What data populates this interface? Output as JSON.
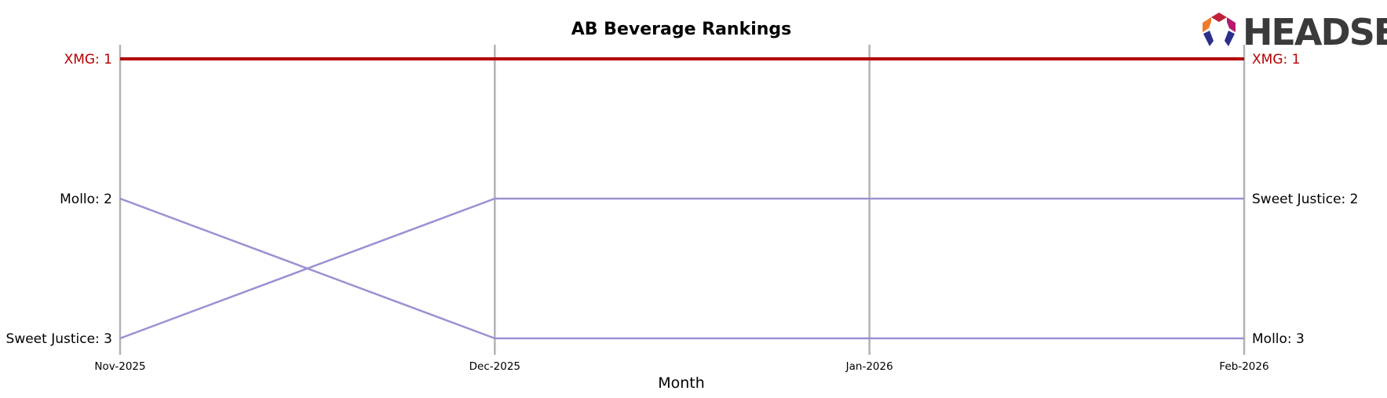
{
  "logo": {
    "text": "HEADSET"
  },
  "chart_data": {
    "type": "line",
    "title": "AB Beverage Rankings",
    "xlabel": "Month",
    "ylabel": "",
    "categories": [
      "Nov-2025",
      "Dec-2025",
      "Jan-2026",
      "Feb-2026"
    ],
    "y_inverted": true,
    "ylim": [
      1,
      3
    ],
    "grid": "vertical lines at each month",
    "series": [
      {
        "name": "XMG",
        "values": [
          1,
          1,
          1,
          1
        ],
        "color": "#b30000",
        "highlight": true
      },
      {
        "name": "Mollo",
        "values": [
          2,
          3,
          3,
          3
        ],
        "color": "#9b91d3"
      },
      {
        "name": "Sweet Justice",
        "values": [
          3,
          2,
          2,
          2
        ],
        "color": "#9b91d3"
      }
    ],
    "left_labels": [
      {
        "text": "XMG: 1",
        "rank": 1,
        "color": "#b30000"
      },
      {
        "text": "Mollo: 2",
        "rank": 2,
        "color": "#000000"
      },
      {
        "text": "Sweet Justice: 3",
        "rank": 3,
        "color": "#000000"
      }
    ],
    "right_labels": [
      {
        "text": "XMG: 1",
        "rank": 1,
        "color": "#b30000"
      },
      {
        "text": "Sweet Justice: 2",
        "rank": 2,
        "color": "#000000"
      },
      {
        "text": "Mollo: 3",
        "rank": 3,
        "color": "#000000"
      }
    ]
  }
}
